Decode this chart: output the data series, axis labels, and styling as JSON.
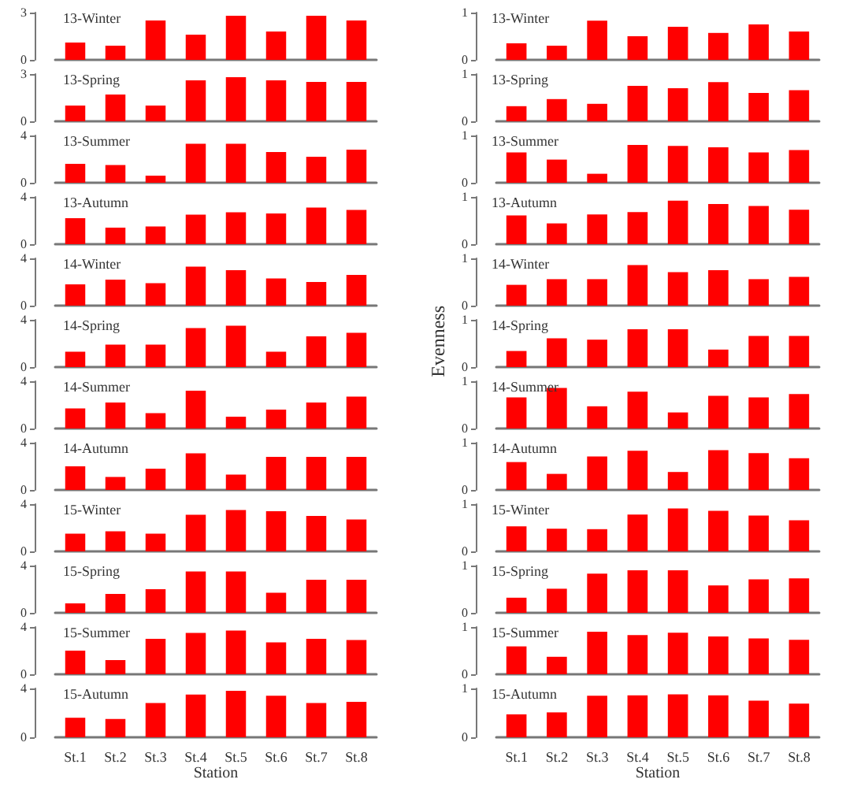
{
  "chart_data": [
    {
      "type": "bar",
      "title": "13-Winter",
      "categories": [
        null,
        null,
        null,
        null,
        null,
        null,
        null,
        null
      ],
      "values": [
        1.1,
        0.9,
        2.5,
        1.6,
        2.8,
        1.8,
        2.8,
        2.5
      ],
      "color": "#ff0000",
      "ylim": [
        0,
        3
      ],
      "yticks": [
        0,
        3
      ],
      "tick_labels": "y"
    },
    {
      "type": "bar",
      "title": "13-Spring",
      "categories": [
        null,
        null,
        null,
        null,
        null,
        null,
        null,
        null
      ],
      "values": [
        1.0,
        1.7,
        1.0,
        2.6,
        2.8,
        2.6,
        2.5,
        2.5
      ],
      "color": "#ff0000",
      "ylim": [
        0,
        3
      ],
      "yticks": [
        0,
        3
      ],
      "tick_labels": "y"
    },
    {
      "type": "bar",
      "title": "13-Summer",
      "categories": [
        null,
        null,
        null,
        null,
        null,
        null,
        null,
        null
      ],
      "values": [
        1.6,
        1.5,
        0.6,
        3.3,
        3.3,
        2.6,
        2.2,
        2.8
      ],
      "color": "#ff0000",
      "ylim": [
        0,
        4
      ],
      "yticks": [
        0,
        4
      ],
      "tick_labels": "y"
    },
    {
      "type": "bar",
      "title": "13-Autumn",
      "categories": [
        null,
        null,
        null,
        null,
        null,
        null,
        null,
        null
      ],
      "values": [
        2.2,
        1.4,
        1.5,
        2.5,
        2.7,
        2.6,
        3.1,
        2.9
      ],
      "color": "#ff0000",
      "ylim": [
        0,
        4
      ],
      "yticks": [
        0,
        4
      ],
      "tick_labels": "y"
    },
    {
      "type": "bar",
      "title": "14-Winter",
      "categories": [
        null,
        null,
        null,
        null,
        null,
        null,
        null,
        null
      ],
      "values": [
        1.8,
        2.2,
        1.9,
        3.3,
        3.0,
        2.3,
        2.0,
        2.6
      ],
      "color": "#ff0000",
      "ylim": [
        0,
        4
      ],
      "yticks": [
        0,
        4
      ],
      "tick_labels": "y"
    },
    {
      "type": "bar",
      "title": "14-Spring",
      "categories": [
        null,
        null,
        null,
        null,
        null,
        null,
        null,
        null
      ],
      "values": [
        1.3,
        1.9,
        1.9,
        3.3,
        3.5,
        1.3,
        2.6,
        2.9
      ],
      "color": "#ff0000",
      "ylim": [
        0,
        4
      ],
      "yticks": [
        0,
        4
      ],
      "tick_labels": "y"
    },
    {
      "type": "bar",
      "title": "14-Summer",
      "categories": [
        null,
        null,
        null,
        null,
        null,
        null,
        null,
        null
      ],
      "values": [
        1.7,
        2.2,
        1.3,
        3.2,
        1.0,
        1.6,
        2.2,
        2.7
      ],
      "color": "#ff0000",
      "ylim": [
        0,
        4
      ],
      "yticks": [
        0,
        4
      ],
      "tick_labels": "y"
    },
    {
      "type": "bar",
      "title": "14-Autumn",
      "categories": [
        null,
        null,
        null,
        null,
        null,
        null,
        null,
        null
      ],
      "values": [
        2.0,
        1.1,
        1.8,
        3.1,
        1.3,
        2.8,
        2.8,
        2.8
      ],
      "color": "#ff0000",
      "ylim": [
        0,
        4
      ],
      "yticks": [
        0,
        4
      ],
      "tick_labels": "y"
    },
    {
      "type": "bar",
      "title": "15-Winter",
      "categories": [
        null,
        null,
        null,
        null,
        null,
        null,
        null,
        null
      ],
      "values": [
        1.5,
        1.7,
        1.5,
        3.1,
        3.5,
        3.4,
        3.0,
        2.7
      ],
      "color": "#ff0000",
      "ylim": [
        0,
        4
      ],
      "yticks": [
        0,
        4
      ],
      "tick_labels": "y"
    },
    {
      "type": "bar",
      "title": "15-Spring",
      "categories": [
        null,
        null,
        null,
        null,
        null,
        null,
        null,
        null
      ],
      "values": [
        0.8,
        1.6,
        2.0,
        3.5,
        3.5,
        1.7,
        2.8,
        2.8
      ],
      "color": "#ff0000",
      "ylim": [
        0,
        4
      ],
      "yticks": [
        0,
        4
      ],
      "tick_labels": "y"
    },
    {
      "type": "bar",
      "title": "15-Summer",
      "categories": [
        null,
        null,
        null,
        null,
        null,
        null,
        null,
        null
      ],
      "values": [
        2.0,
        1.2,
        3.0,
        3.5,
        3.7,
        2.7,
        3.0,
        2.9
      ],
      "color": "#ff0000",
      "ylim": [
        0,
        4
      ],
      "yticks": [
        0,
        4
      ],
      "tick_labels": "y"
    },
    {
      "type": "bar",
      "title": "15-Autumn",
      "xlabel": "Station",
      "categories": [
        "St.1",
        "St.2",
        "St.3",
        "St.4",
        "St.5",
        "St.6",
        "St.7",
        "St.8"
      ],
      "values": [
        1.6,
        1.5,
        2.8,
        3.5,
        3.8,
        3.4,
        2.8,
        2.9
      ],
      "color": "#ff0000",
      "ylim": [
        0,
        4
      ],
      "yticks": [
        0,
        4
      ]
    },
    {
      "type": "bar",
      "title": "13-Winter",
      "categories": [
        null,
        null,
        null,
        null,
        null,
        null,
        null,
        null
      ],
      "values": [
        0.35,
        0.3,
        0.83,
        0.5,
        0.7,
        0.57,
        0.75,
        0.6
      ],
      "color": "#ff0000",
      "ylim": [
        0,
        1
      ],
      "yticks": [
        0,
        1
      ],
      "tick_labels": "y"
    },
    {
      "type": "bar",
      "title": "13-Spring",
      "categories": [
        null,
        null,
        null,
        null,
        null,
        null,
        null,
        null
      ],
      "values": [
        0.32,
        0.47,
        0.37,
        0.75,
        0.7,
        0.83,
        0.6,
        0.66
      ],
      "color": "#ff0000",
      "ylim": [
        0,
        1
      ],
      "yticks": [
        0,
        1
      ],
      "tick_labels": "y"
    },
    {
      "type": "bar",
      "title": "13-Summer",
      "categories": [
        null,
        null,
        null,
        null,
        null,
        null,
        null,
        null
      ],
      "values": [
        0.64,
        0.49,
        0.19,
        0.8,
        0.78,
        0.75,
        0.64,
        0.69
      ],
      "color": "#ff0000",
      "ylim": [
        0,
        1
      ],
      "yticks": [
        0,
        1
      ],
      "tick_labels": "y"
    },
    {
      "type": "bar",
      "title": "13-Autumn",
      "categories": [
        null,
        null,
        null,
        null,
        null,
        null,
        null,
        null
      ],
      "values": [
        0.61,
        0.44,
        0.63,
        0.68,
        0.92,
        0.85,
        0.81,
        0.73
      ],
      "color": "#ff0000",
      "ylim": [
        0,
        1
      ],
      "yticks": [
        0,
        1
      ],
      "tick_labels": "y"
    },
    {
      "type": "bar",
      "title": "14-Winter",
      "categories": [
        null,
        null,
        null,
        null,
        null,
        null,
        null,
        null
      ],
      "values": [
        0.44,
        0.56,
        0.56,
        0.86,
        0.71,
        0.75,
        0.56,
        0.61
      ],
      "color": "#ff0000",
      "ylim": [
        0,
        1
      ],
      "yticks": [
        0,
        1
      ],
      "tick_labels": "y"
    },
    {
      "type": "bar",
      "title": "14-Spring",
      "ylabel": "Evenness",
      "categories": [
        null,
        null,
        null,
        null,
        null,
        null,
        null,
        null
      ],
      "values": [
        0.34,
        0.61,
        0.58,
        0.8,
        0.8,
        0.37,
        0.66,
        0.66
      ],
      "color": "#ff0000",
      "ylim": [
        0,
        1
      ],
      "yticks": [
        0,
        1
      ],
      "tick_labels": "y"
    },
    {
      "type": "bar",
      "title": "14-Summer",
      "categories": [
        null,
        null,
        null,
        null,
        null,
        null,
        null,
        null
      ],
      "values": [
        0.66,
        0.86,
        0.47,
        0.78,
        0.34,
        0.69,
        0.66,
        0.73
      ],
      "color": "#ff0000",
      "ylim": [
        0,
        1
      ],
      "yticks": [
        0,
        1
      ],
      "tick_labels": "y"
    },
    {
      "type": "bar",
      "title": "14-Autumn",
      "categories": [
        null,
        null,
        null,
        null,
        null,
        null,
        null,
        null
      ],
      "values": [
        0.59,
        0.34,
        0.71,
        0.83,
        0.38,
        0.84,
        0.78,
        0.67
      ],
      "color": "#ff0000",
      "ylim": [
        0,
        1
      ],
      "yticks": [
        0,
        1
      ],
      "tick_labels": "y"
    },
    {
      "type": "bar",
      "title": "15-Winter",
      "categories": [
        null,
        null,
        null,
        null,
        null,
        null,
        null,
        null
      ],
      "values": [
        0.53,
        0.48,
        0.47,
        0.78,
        0.91,
        0.86,
        0.76,
        0.66
      ],
      "color": "#ff0000",
      "ylim": [
        0,
        1
      ],
      "yticks": [
        0,
        1
      ],
      "tick_labels": "y"
    },
    {
      "type": "bar",
      "title": "15-Spring",
      "categories": [
        null,
        null,
        null,
        null,
        null,
        null,
        null,
        null
      ],
      "values": [
        0.32,
        0.51,
        0.83,
        0.9,
        0.9,
        0.58,
        0.71,
        0.73
      ],
      "color": "#ff0000",
      "ylim": [
        0,
        1
      ],
      "yticks": [
        0,
        1
      ],
      "tick_labels": "y"
    },
    {
      "type": "bar",
      "title": "15-Summer",
      "categories": [
        null,
        null,
        null,
        null,
        null,
        null,
        null,
        null
      ],
      "values": [
        0.59,
        0.37,
        0.9,
        0.83,
        0.88,
        0.8,
        0.76,
        0.73
      ],
      "color": "#ff0000",
      "ylim": [
        0,
        1
      ],
      "yticks": [
        0,
        1
      ],
      "tick_labels": "y"
    },
    {
      "type": "bar",
      "title": "15-Autumn",
      "xlabel": "Station",
      "categories": [
        "St.1",
        "St.2",
        "St.3",
        "St.4",
        "St.5",
        "St.6",
        "St.7",
        "St.8"
      ],
      "values": [
        0.47,
        0.51,
        0.85,
        0.86,
        0.88,
        0.86,
        0.75,
        0.69
      ],
      "color": "#ff0000",
      "ylim": [
        0,
        1
      ],
      "yticks": [
        0,
        1
      ]
    }
  ]
}
